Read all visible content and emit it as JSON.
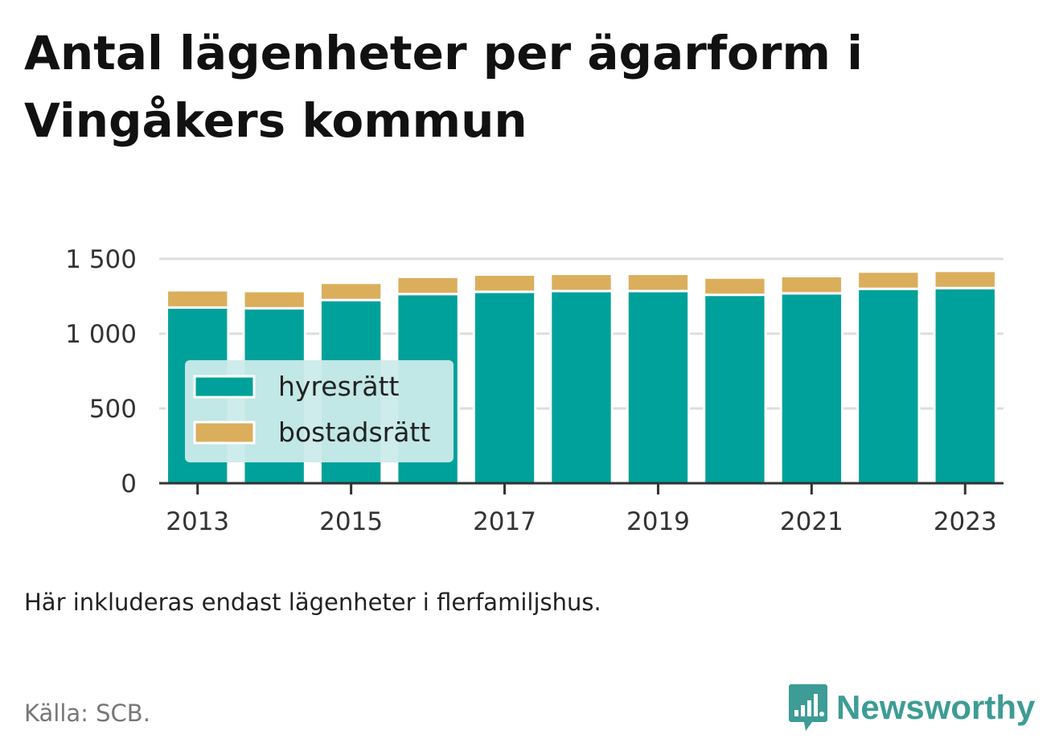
{
  "title": "Antal lägenheter per ägarform i Vingåkers kommun",
  "note": "Här inkluderas endast lägenheter i flerfamiljshus.",
  "source": "Källa: SCB.",
  "logo": {
    "text": "Newsworthy",
    "icon": "bar-chart-speech-bubble-icon"
  },
  "colors": {
    "hyresratt": "#00a19a",
    "bostadsratt": "#dbae5c",
    "legend_bg": "#cbebea",
    "grid": "#dddddd",
    "axis": "#333333",
    "brand": "#3d9c96"
  },
  "chart_data": {
    "type": "bar",
    "stacked": true,
    "x": [
      2013,
      2014,
      2015,
      2016,
      2017,
      2018,
      2019,
      2020,
      2021,
      2022,
      2023
    ],
    "x_tick_labels": [
      "2013",
      "2015",
      "2017",
      "2019",
      "2021",
      "2023"
    ],
    "y_ticks": [
      0,
      500,
      1000,
      1500
    ],
    "y_tick_labels": [
      "0",
      "500",
      "1 000",
      "1 500"
    ],
    "ylim": [
      0,
      1500
    ],
    "grid": true,
    "legend_position": "left",
    "series": [
      {
        "name": "hyresrätt",
        "values": [
          1175,
          1170,
          1225,
          1265,
          1280,
          1285,
          1285,
          1260,
          1270,
          1300,
          1305
        ]
      },
      {
        "name": "bostadsrätt",
        "values": [
          115,
          115,
          115,
          115,
          115,
          115,
          115,
          115,
          115,
          115,
          115
        ]
      }
    ]
  }
}
